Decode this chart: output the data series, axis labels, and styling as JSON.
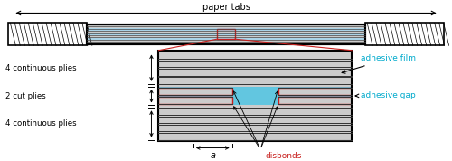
{
  "fig_width": 5.0,
  "fig_height": 1.78,
  "dpi": 100,
  "bg_color": "#ffffff",
  "colors": {
    "black": "#000000",
    "gray_ply": "#cccccc",
    "dark_line": "#333333",
    "cyan_adhesive": "#62c6e0",
    "red": "#c8201e",
    "cyan_text": "#00aacc",
    "white": "#ffffff",
    "light_blue": "#aad4e8"
  },
  "labels": {
    "paper_tabs": "paper tabs",
    "adhesive_film": "adhesive film",
    "adhesive_gap": "adhesive gap",
    "disbonds": "disbonds",
    "continuous_plies_top": "4 continuous plies",
    "cut_plies": "2 cut plies",
    "continuous_plies_bottom": "4 continuous plies",
    "dim_a": "a"
  }
}
